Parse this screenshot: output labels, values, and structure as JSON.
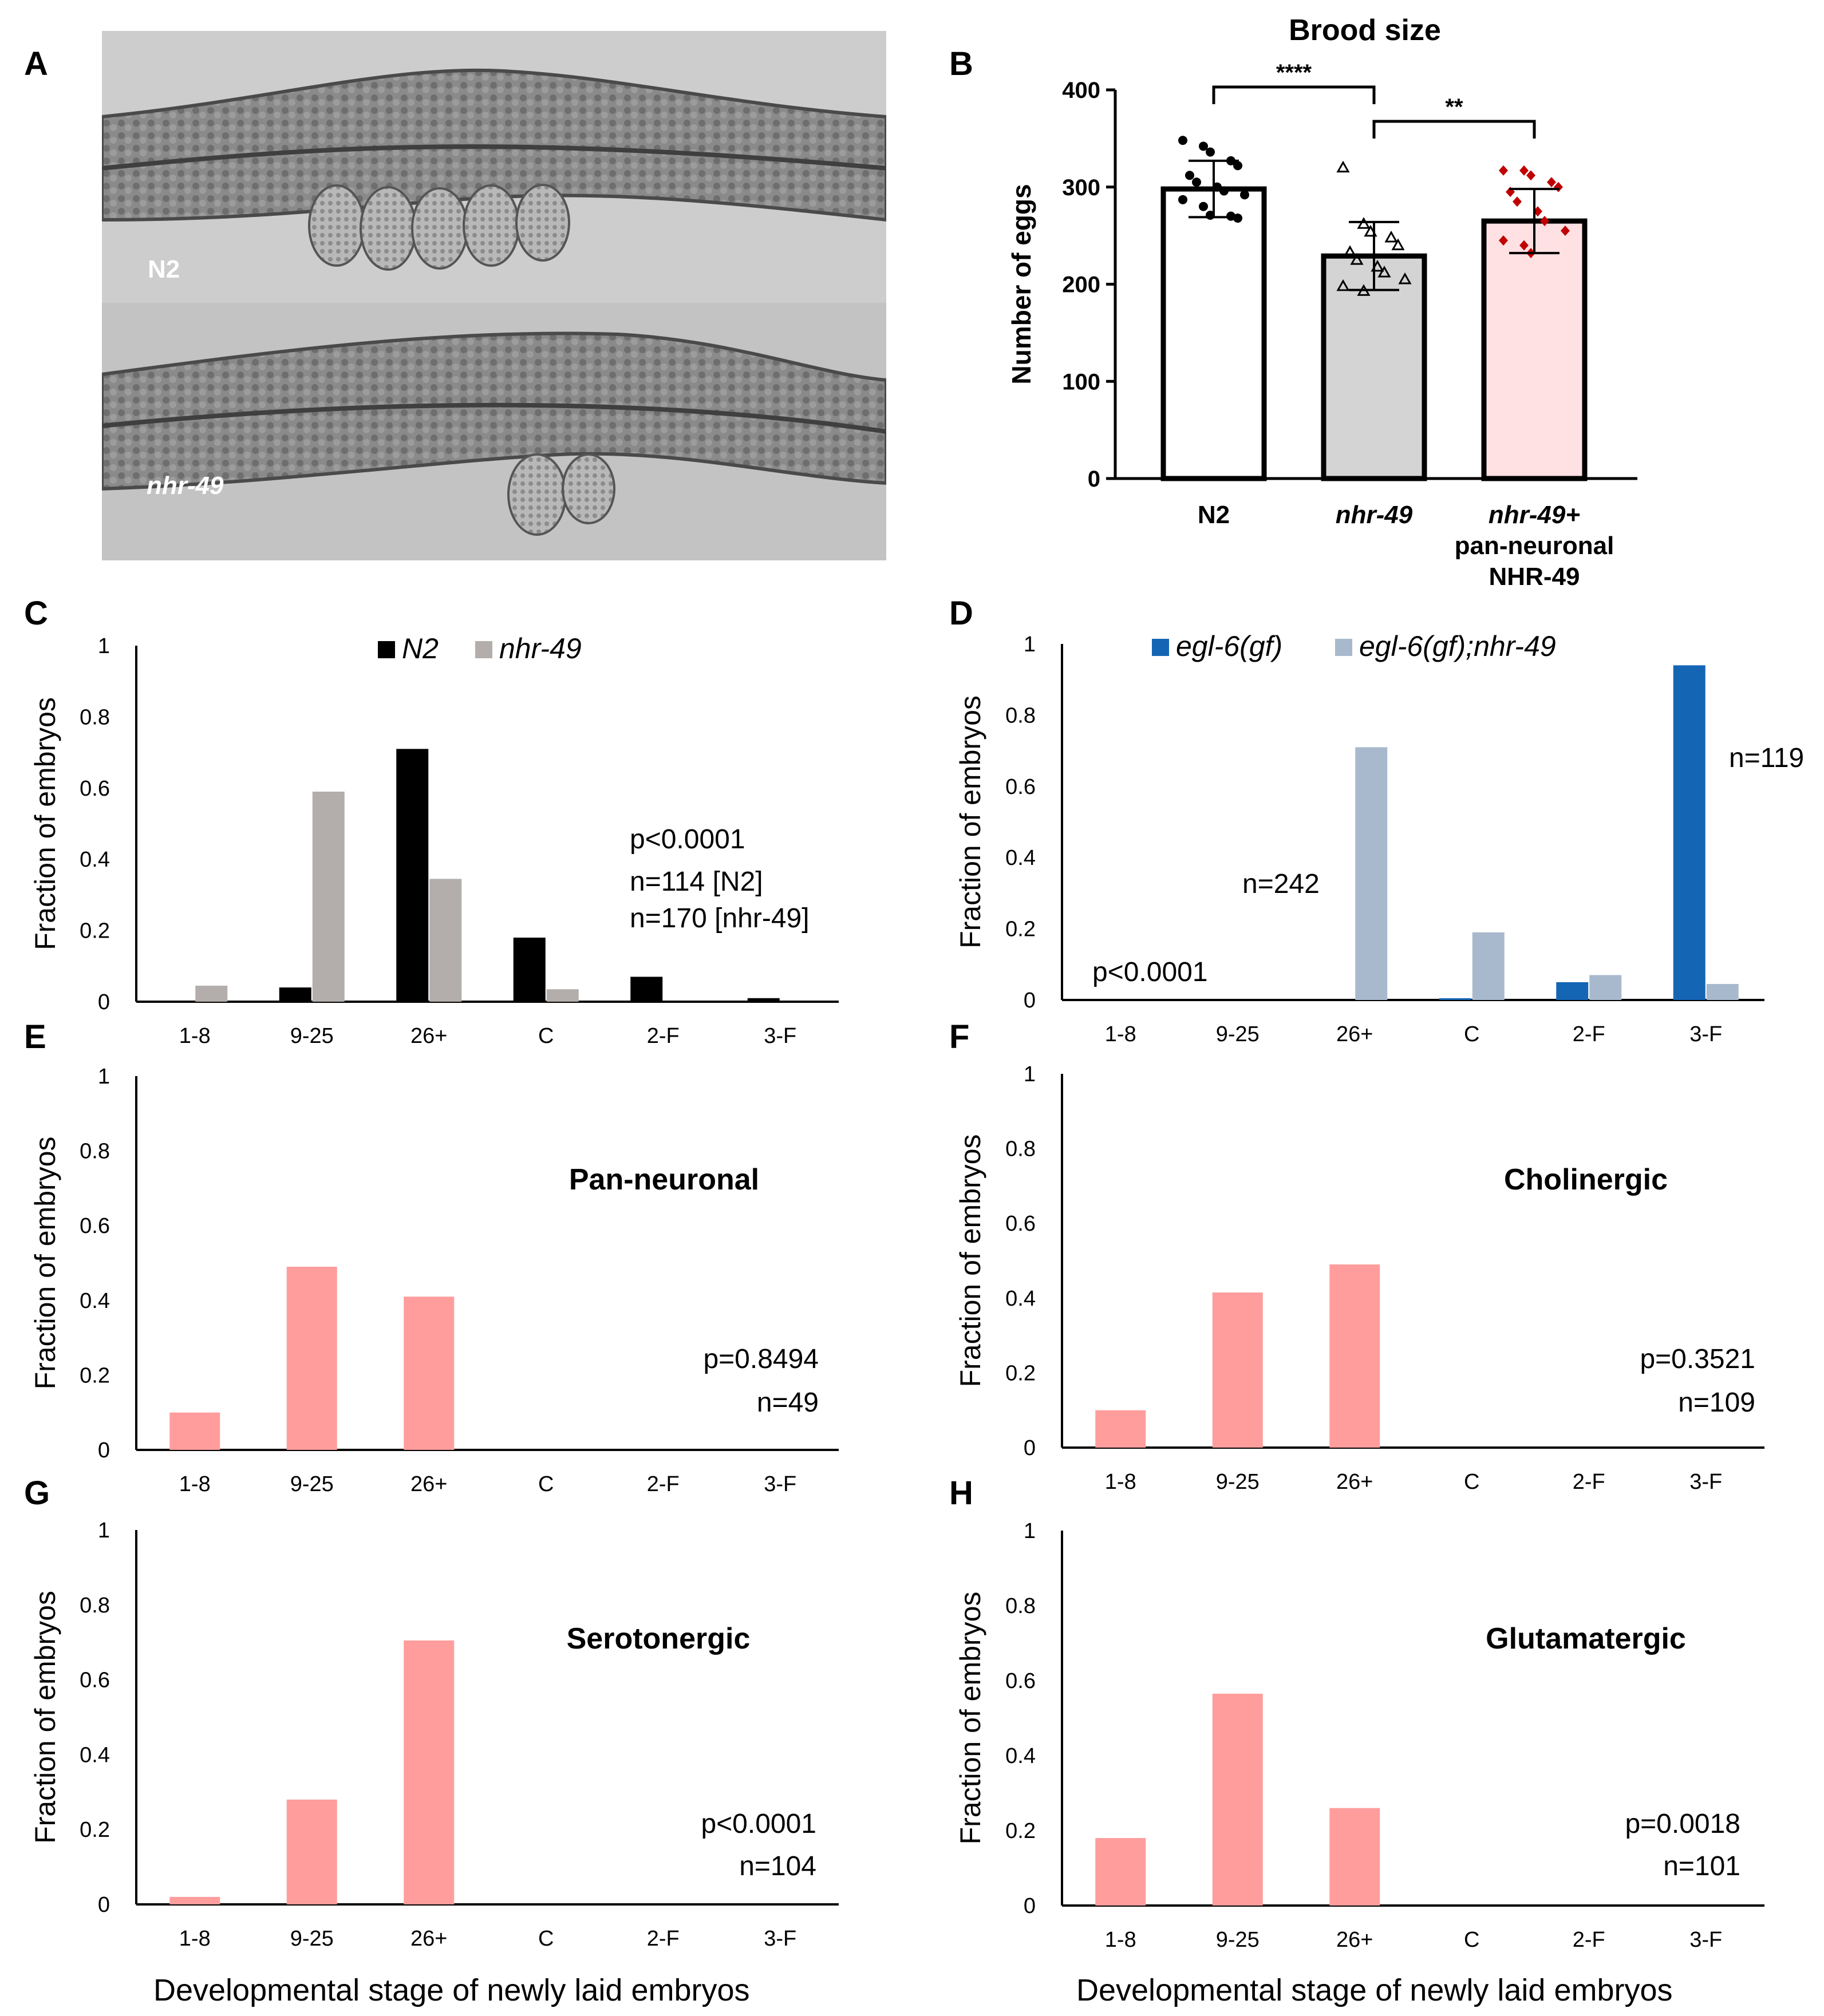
{
  "panel_letters": [
    "A",
    "B",
    "C",
    "D",
    "E",
    "F",
    "G",
    "H"
  ],
  "panel_a": {
    "top_label": "N2",
    "bottom_label": "nhr-49"
  },
  "chart_data": [
    {
      "panel": "B",
      "type": "bar",
      "title": "Brood size",
      "ylabel": "Number of eggs",
      "ylim": [
        0,
        400
      ],
      "yticks": [
        0,
        100,
        200,
        300,
        400
      ],
      "categories": [
        "N2",
        "nhr-49",
        "nhr-49+ pan-neuronal NHR-49"
      ],
      "category_lines": [
        [
          "N2"
        ],
        [
          "nhr-49"
        ],
        [
          "nhr-49+",
          "pan-neuronal",
          "NHR-49"
        ]
      ],
      "values": [
        298,
        229,
        265
      ],
      "errors": [
        29,
        35,
        33
      ],
      "bar_colors": [
        "#ffffff",
        "#d4d4d4",
        "#ffe0e3"
      ],
      "point_colors": [
        "#000000",
        "#000000",
        "#c00000"
      ],
      "points": [
        [
          348,
          342,
          336,
          327,
          322,
          312,
          305,
          300,
          296,
          292,
          287,
          280,
          271,
          270,
          268
        ],
        [
          320,
          262,
          254,
          248,
          240,
          233,
          225,
          218,
          212,
          205,
          198,
          193
        ],
        [
          317,
          317,
          312,
          305,
          300,
          295,
          285,
          275,
          265,
          255,
          245,
          240,
          232
        ]
      ],
      "significance": [
        {
          "from": 0,
          "to": 1,
          "label": "****"
        },
        {
          "from": 1,
          "to": 2,
          "label": "**"
        }
      ]
    },
    {
      "panel": "C",
      "type": "bar",
      "categories": [
        "1-8",
        "9-25",
        "26+",
        "C",
        "2-F",
        "3-F"
      ],
      "ylabel": "Fraction of embryos",
      "ylim": [
        0,
        1
      ],
      "yticks": [
        0,
        0.2,
        0.4,
        0.6,
        0.8,
        1
      ],
      "yticklabels": [
        "0",
        "0.2",
        "0.4",
        "0.6",
        "0.8",
        "1"
      ],
      "series": [
        {
          "name": "N2",
          "color": "#000000",
          "values": [
            0,
            0.04,
            0.71,
            0.18,
            0.07,
            0.01
          ]
        },
        {
          "name": "nhr-49",
          "color": "#b3aeab",
          "values": [
            0.045,
            0.59,
            0.345,
            0.035,
            0,
            0
          ]
        }
      ],
      "annotations": [
        "p<0.0001",
        "n=114 [N2]",
        "n=170 [nhr-49]"
      ]
    },
    {
      "panel": "D",
      "type": "bar",
      "categories": [
        "1-8",
        "9-25",
        "26+",
        "C",
        "2-F",
        "3-F"
      ],
      "ylabel": "Fraction of embryos",
      "ylim": [
        0,
        1
      ],
      "yticks": [
        0,
        0.2,
        0.4,
        0.6,
        0.8,
        1
      ],
      "yticklabels": [
        "0",
        "0.2",
        "0.4",
        "0.6",
        "0.8",
        "1"
      ],
      "series": [
        {
          "name": "egl-6(gf)",
          "color": "#1565b5",
          "values": [
            0,
            0,
            0,
            0.005,
            0.05,
            0.94
          ]
        },
        {
          "name": "egl-6(gf);nhr-49",
          "color": "#a9b9cd",
          "values": [
            0,
            0,
            0.71,
            0.19,
            0.07,
            0.045
          ]
        }
      ],
      "annotations": [
        "p<0.0001",
        "n=242",
        "n=119"
      ]
    },
    {
      "panel": "E",
      "type": "bar",
      "categories": [
        "1-8",
        "9-25",
        "26+",
        "C",
        "2-F",
        "3-F"
      ],
      "ylabel": "Fraction of embryos",
      "ylim": [
        0,
        1
      ],
      "yticks": [
        0,
        0.2,
        0.4,
        0.6,
        0.8,
        1
      ],
      "yticklabels": [
        "0",
        "0.2",
        "0.4",
        "0.6",
        "0.8",
        "1"
      ],
      "series": [
        {
          "color": "#ff9d9d",
          "values": [
            0.1,
            0.49,
            0.41,
            0,
            0,
            0
          ]
        }
      ],
      "group_label": "Pan-neuronal",
      "annotations": [
        "p=0.8494",
        "n=49"
      ]
    },
    {
      "panel": "F",
      "type": "bar",
      "categories": [
        "1-8",
        "9-25",
        "26+",
        "C",
        "2-F",
        "3-F"
      ],
      "ylabel": "Fraction of embryos",
      "ylim": [
        0,
        1
      ],
      "yticks": [
        0,
        0.2,
        0.4,
        0.6,
        0.8,
        1
      ],
      "yticklabels": [
        "0",
        "0.2",
        "0.4",
        "0.6",
        "0.8",
        "1"
      ],
      "series": [
        {
          "color": "#ff9d9d",
          "values": [
            0.1,
            0.415,
            0.49,
            0,
            0,
            0
          ]
        }
      ],
      "group_label": "Cholinergic",
      "annotations": [
        "p=0.3521",
        "n=109"
      ]
    },
    {
      "panel": "G",
      "type": "bar",
      "categories": [
        "1-8",
        "9-25",
        "26+",
        "C",
        "2-F",
        "3-F"
      ],
      "ylabel": "Fraction of embryos",
      "ylim": [
        0,
        1
      ],
      "yticks": [
        0,
        0.2,
        0.4,
        0.6,
        0.8,
        1
      ],
      "yticklabels": [
        "0",
        "0.2",
        "0.4",
        "0.6",
        "0.8",
        "1"
      ],
      "series": [
        {
          "color": "#ff9d9d",
          "values": [
            0.02,
            0.28,
            0.705,
            0,
            0,
            0
          ]
        }
      ],
      "group_label": "Serotonergic",
      "annotations": [
        "p<0.0001",
        "n=104"
      ]
    },
    {
      "panel": "H",
      "type": "bar",
      "categories": [
        "1-8",
        "9-25",
        "26+",
        "C",
        "2-F",
        "3-F"
      ],
      "ylabel": "Fraction of embryos",
      "ylim": [
        0,
        1
      ],
      "yticks": [
        0,
        0.2,
        0.4,
        0.6,
        0.8,
        1
      ],
      "yticklabels": [
        "0",
        "0.2",
        "0.4",
        "0.6",
        "0.8",
        "1"
      ],
      "series": [
        {
          "color": "#ff9d9d",
          "values": [
            0.18,
            0.565,
            0.26,
            0,
            0,
            0
          ]
        }
      ],
      "group_label": "Glutamatergic",
      "annotations": [
        "p=0.0018",
        "n=101"
      ]
    }
  ],
  "xlabel_bottom": "Developmental stage of newly laid embryos"
}
